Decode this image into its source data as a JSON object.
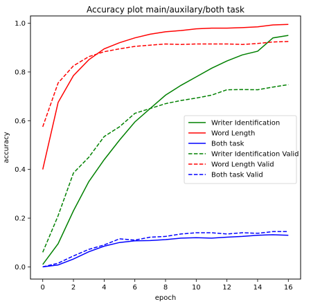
{
  "chart_data": {
    "type": "line",
    "title": "Accuracy plot main/auxilary/both task",
    "xlabel": "epoch",
    "ylabel": "accuracy",
    "xlim": [
      -0.8,
      16.8
    ],
    "ylim": [
      -0.05,
      1.03
    ],
    "x": [
      0,
      1,
      2,
      3,
      4,
      5,
      6,
      7,
      8,
      9,
      10,
      11,
      12,
      13,
      14,
      15,
      16
    ],
    "xticks": [
      0,
      2,
      4,
      6,
      8,
      10,
      12,
      14,
      16
    ],
    "yticks": [
      0.0,
      0.2,
      0.4,
      0.6,
      0.8,
      1.0
    ],
    "xtick_labels": [
      "0",
      "2",
      "4",
      "6",
      "8",
      "10",
      "12",
      "14",
      "16"
    ],
    "ytick_labels": [
      "0.0",
      "0.2",
      "0.4",
      "0.6",
      "0.8",
      "1.0"
    ],
    "grid": false,
    "legend_position": "center-right",
    "series": [
      {
        "name": "Writer Identification",
        "color": "#008000",
        "style": "solid",
        "values": [
          0.01,
          0.095,
          0.23,
          0.35,
          0.44,
          0.52,
          0.595,
          0.65,
          0.705,
          0.745,
          0.78,
          0.815,
          0.845,
          0.87,
          0.885,
          0.94,
          0.95
        ]
      },
      {
        "name": "Word Length",
        "color": "#ff0000",
        "style": "solid",
        "values": [
          0.4,
          0.675,
          0.785,
          0.85,
          0.895,
          0.92,
          0.94,
          0.955,
          0.965,
          0.97,
          0.977,
          0.98,
          0.98,
          0.982,
          0.985,
          0.993,
          0.995
        ]
      },
      {
        "name": "Both task",
        "color": "#0000ff",
        "style": "solid",
        "values": [
          0.0,
          0.008,
          0.032,
          0.062,
          0.085,
          0.1,
          0.107,
          0.108,
          0.112,
          0.118,
          0.12,
          0.118,
          0.122,
          0.125,
          0.13,
          0.132,
          0.13
        ]
      },
      {
        "name": "Writer Identification Valid",
        "color": "#008000",
        "style": "dashed",
        "values": [
          0.06,
          0.21,
          0.385,
          0.45,
          0.535,
          0.575,
          0.63,
          0.65,
          0.67,
          0.683,
          0.693,
          0.705,
          0.727,
          0.728,
          0.727,
          0.738,
          0.748
        ]
      },
      {
        "name": "Word Length Valid",
        "color": "#ff0000",
        "style": "dashed",
        "values": [
          0.575,
          0.755,
          0.825,
          0.863,
          0.883,
          0.895,
          0.905,
          0.91,
          0.915,
          0.913,
          0.915,
          0.915,
          0.915,
          0.913,
          0.917,
          0.923,
          0.925
        ]
      },
      {
        "name": "Both task Valid",
        "color": "#0000ff",
        "style": "dashed",
        "values": [
          0.0,
          0.015,
          0.045,
          0.072,
          0.09,
          0.115,
          0.11,
          0.122,
          0.125,
          0.135,
          0.14,
          0.14,
          0.135,
          0.14,
          0.138,
          0.145,
          0.145
        ]
      }
    ]
  }
}
